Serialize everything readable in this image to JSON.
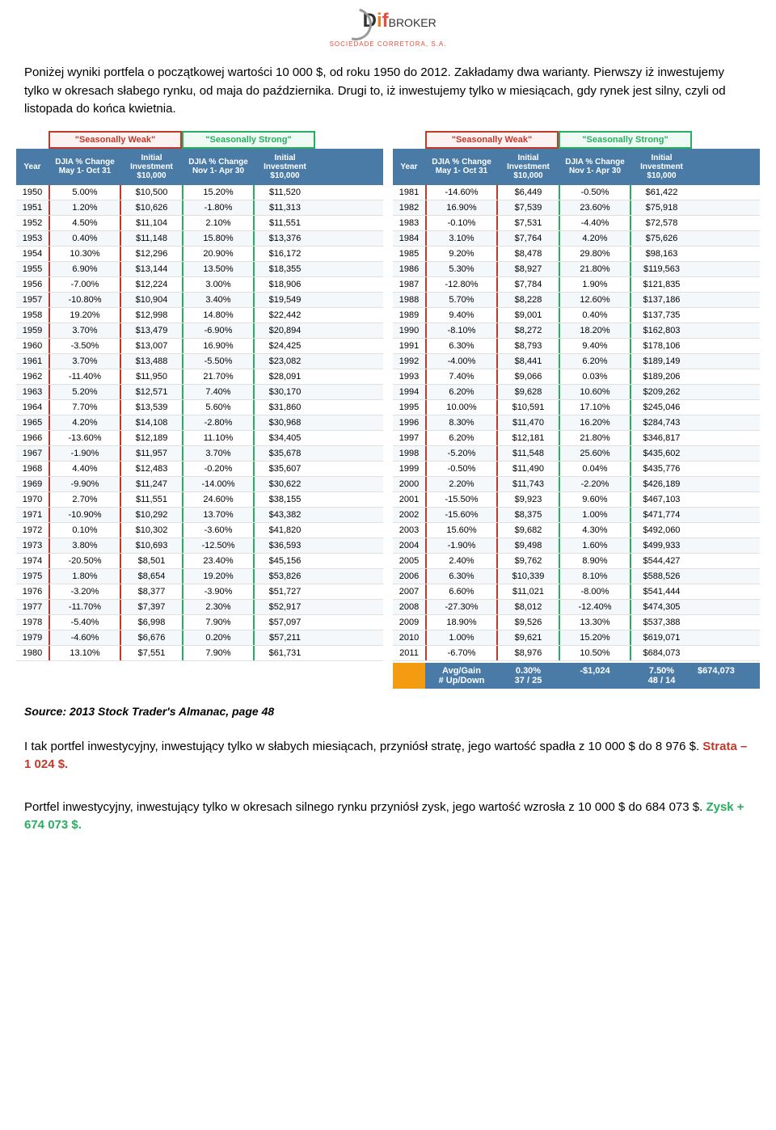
{
  "logo": {
    "d": "D",
    "i": "i",
    "f": "f",
    "broker": "BROKER",
    "sub": "SOCIEDADE CORRETORA, S.A."
  },
  "intro": "Poniżej wyniki portfela o początkowej wartości 10 000 $, od roku 1950 do 2012. Zakładamy dwa warianty. Pierwszy iż inwestujemy tylko w okresach słabego rynku, od maja do października. Drugi to, iż inwestujemy tylko w miesiącach, gdy rynek jest silny, czyli od listopada do końca kwietnia.",
  "headers": {
    "weak": "\"Seasonally Weak\"",
    "strong": "\"Seasonally Strong\"",
    "year": "Year",
    "pct_weak": "DJIA % Change May 1- Oct 31",
    "pct_strong": "DJIA % Change Nov 1- Apr 30",
    "inv": "Initial Investment $10,000"
  },
  "table1": [
    [
      "1950",
      "5.00%",
      "$10,500",
      "15.20%",
      "$11,520"
    ],
    [
      "1951",
      "1.20%",
      "$10,626",
      "-1.80%",
      "$11,313"
    ],
    [
      "1952",
      "4.50%",
      "$11,104",
      "2.10%",
      "$11,551"
    ],
    [
      "1953",
      "0.40%",
      "$11,148",
      "15.80%",
      "$13,376"
    ],
    [
      "1954",
      "10.30%",
      "$12,296",
      "20.90%",
      "$16,172"
    ],
    [
      "1955",
      "6.90%",
      "$13,144",
      "13.50%",
      "$18,355"
    ],
    [
      "1956",
      "-7.00%",
      "$12,224",
      "3.00%",
      "$18,906"
    ],
    [
      "1957",
      "-10.80%",
      "$10,904",
      "3.40%",
      "$19,549"
    ],
    [
      "1958",
      "19.20%",
      "$12,998",
      "14.80%",
      "$22,442"
    ],
    [
      "1959",
      "3.70%",
      "$13,479",
      "-6.90%",
      "$20,894"
    ],
    [
      "1960",
      "-3.50%",
      "$13,007",
      "16.90%",
      "$24,425"
    ],
    [
      "1961",
      "3.70%",
      "$13,488",
      "-5.50%",
      "$23,082"
    ],
    [
      "1962",
      "-11.40%",
      "$11,950",
      "21.70%",
      "$28,091"
    ],
    [
      "1963",
      "5.20%",
      "$12,571",
      "7.40%",
      "$30,170"
    ],
    [
      "1964",
      "7.70%",
      "$13,539",
      "5.60%",
      "$31,860"
    ],
    [
      "1965",
      "4.20%",
      "$14,108",
      "-2.80%",
      "$30,968"
    ],
    [
      "1966",
      "-13.60%",
      "$12,189",
      "11.10%",
      "$34,405"
    ],
    [
      "1967",
      "-1.90%",
      "$11,957",
      "3.70%",
      "$35,678"
    ],
    [
      "1968",
      "4.40%",
      "$12,483",
      "-0.20%",
      "$35,607"
    ],
    [
      "1969",
      "-9.90%",
      "$11,247",
      "-14.00%",
      "$30,622"
    ],
    [
      "1970",
      "2.70%",
      "$11,551",
      "24.60%",
      "$38,155"
    ],
    [
      "1971",
      "-10.90%",
      "$10,292",
      "13.70%",
      "$43,382"
    ],
    [
      "1972",
      "0.10%",
      "$10,302",
      "-3.60%",
      "$41,820"
    ],
    [
      "1973",
      "3.80%",
      "$10,693",
      "-12.50%",
      "$36,593"
    ],
    [
      "1974",
      "-20.50%",
      "$8,501",
      "23.40%",
      "$45,156"
    ],
    [
      "1975",
      "1.80%",
      "$8,654",
      "19.20%",
      "$53,826"
    ],
    [
      "1976",
      "-3.20%",
      "$8,377",
      "-3.90%",
      "$51,727"
    ],
    [
      "1977",
      "-11.70%",
      "$7,397",
      "2.30%",
      "$52,917"
    ],
    [
      "1978",
      "-5.40%",
      "$6,998",
      "7.90%",
      "$57,097"
    ],
    [
      "1979",
      "-4.60%",
      "$6,676",
      "0.20%",
      "$57,211"
    ],
    [
      "1980",
      "13.10%",
      "$7,551",
      "7.90%",
      "$61,731"
    ]
  ],
  "table2": [
    [
      "1981",
      "-14.60%",
      "$6,449",
      "-0.50%",
      "$61,422"
    ],
    [
      "1982",
      "16.90%",
      "$7,539",
      "23.60%",
      "$75,918"
    ],
    [
      "1983",
      "-0.10%",
      "$7,531",
      "-4.40%",
      "$72,578"
    ],
    [
      "1984",
      "3.10%",
      "$7,764",
      "4.20%",
      "$75,626"
    ],
    [
      "1985",
      "9.20%",
      "$8,478",
      "29.80%",
      "$98,163"
    ],
    [
      "1986",
      "5.30%",
      "$8,927",
      "21.80%",
      "$119,563"
    ],
    [
      "1987",
      "-12.80%",
      "$7,784",
      "1.90%",
      "$121,835"
    ],
    [
      "1988",
      "5.70%",
      "$8,228",
      "12.60%",
      "$137,186"
    ],
    [
      "1989",
      "9.40%",
      "$9,001",
      "0.40%",
      "$137,735"
    ],
    [
      "1990",
      "-8.10%",
      "$8,272",
      "18.20%",
      "$162,803"
    ],
    [
      "1991",
      "6.30%",
      "$8,793",
      "9.40%",
      "$178,106"
    ],
    [
      "1992",
      "-4.00%",
      "$8,441",
      "6.20%",
      "$189,149"
    ],
    [
      "1993",
      "7.40%",
      "$9,066",
      "0.03%",
      "$189,206"
    ],
    [
      "1994",
      "6.20%",
      "$9,628",
      "10.60%",
      "$209,262"
    ],
    [
      "1995",
      "10.00%",
      "$10,591",
      "17.10%",
      "$245,046"
    ],
    [
      "1996",
      "8.30%",
      "$11,470",
      "16.20%",
      "$284,743"
    ],
    [
      "1997",
      "6.20%",
      "$12,181",
      "21.80%",
      "$346,817"
    ],
    [
      "1998",
      "-5.20%",
      "$11,548",
      "25.60%",
      "$435,602"
    ],
    [
      "1999",
      "-0.50%",
      "$11,490",
      "0.04%",
      "$435,776"
    ],
    [
      "2000",
      "2.20%",
      "$11,743",
      "-2.20%",
      "$426,189"
    ],
    [
      "2001",
      "-15.50%",
      "$9,923",
      "9.60%",
      "$467,103"
    ],
    [
      "2002",
      "-15.60%",
      "$8,375",
      "1.00%",
      "$471,774"
    ],
    [
      "2003",
      "15.60%",
      "$9,682",
      "4.30%",
      "$492,060"
    ],
    [
      "2004",
      "-1.90%",
      "$9,498",
      "1.60%",
      "$499,933"
    ],
    [
      "2005",
      "2.40%",
      "$9,762",
      "8.90%",
      "$544,427"
    ],
    [
      "2006",
      "6.30%",
      "$10,339",
      "8.10%",
      "$588,526"
    ],
    [
      "2007",
      "6.60%",
      "$11,021",
      "-8.00%",
      "$541,444"
    ],
    [
      "2008",
      "-27.30%",
      "$8,012",
      "-12.40%",
      "$474,305"
    ],
    [
      "2009",
      "18.90%",
      "$9,526",
      "13.30%",
      "$537,388"
    ],
    [
      "2010",
      "1.00%",
      "$9,621",
      "15.20%",
      "$619,071"
    ],
    [
      "2011",
      "-6.70%",
      "$8,976",
      "10.50%",
      "$684,073"
    ]
  ],
  "summary": {
    "label1": "Avg/Gain",
    "label2": "# Up/Down",
    "v1": "0.30%",
    "v2": "37 / 25",
    "v3": "-$1,024",
    "v4": "7.50%",
    "v5": "48 / 14",
    "v6": "$674,073"
  },
  "source": "Source: 2013 Stock Trader's Almanac, page 48",
  "conclusion1": "I tak portfel inwestycyjny, inwestujący tylko w słabych miesiącach, przyniósł stratę, jego wartość spadła z 10 000 $ do 8 976 $. ",
  "loss": "Strata – 1 024 $.",
  "conclusion2": "Portfel inwestycyjny, inwestujący tylko w okresach silnego rynku przyniósł zysk, jego wartość wzrosła z 10 000 $ do 684 073 $. ",
  "gain": "Zysk + 674 073 $."
}
